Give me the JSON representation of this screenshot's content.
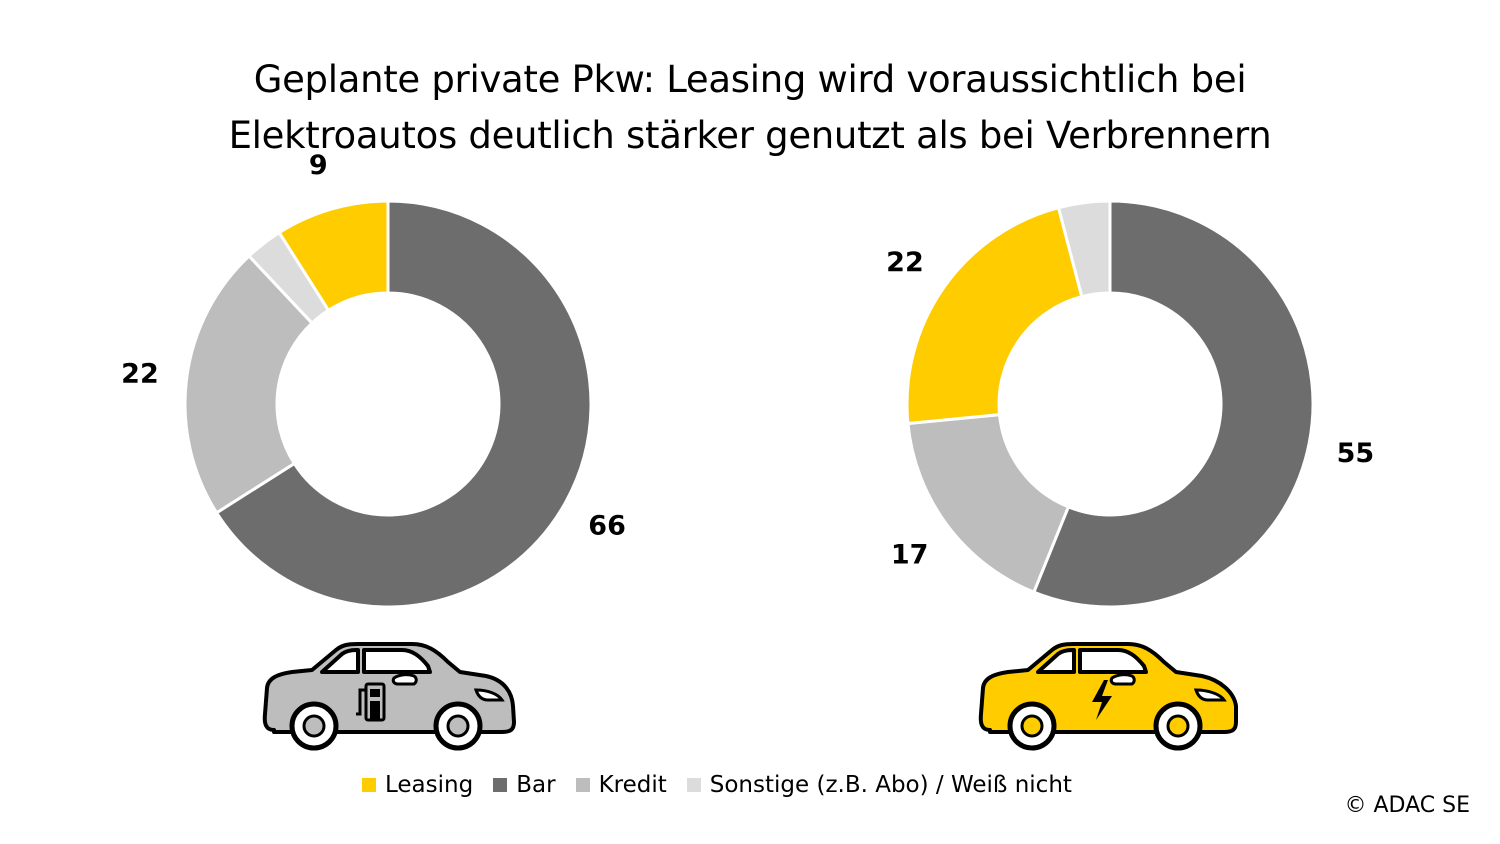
{
  "title_line1": "Geplante private Pkw: Leasing wird voraussichtlich bei",
  "title_line2": "Elektroautos deutlich stärker genutzt als bei Verbrennern",
  "colors": {
    "leasing": "#ffcc00",
    "bar": "#6d6d6d",
    "kredit": "#bdbdbd",
    "sonstige": "#dcdcdc"
  },
  "legend": [
    {
      "label": "Leasing",
      "color": "#ffcc00"
    },
    {
      "label": "Bar",
      "color": "#6d6d6d"
    },
    {
      "label": "Kredit",
      "color": "#bdbdbd"
    },
    {
      "label": "Sonstige (z.B. Abo) / Weiß nicht",
      "color": "#dcdcdc"
    }
  ],
  "copyright": "© ADAC SE",
  "chart_data": [
    {
      "type": "pie",
      "variant": "donut",
      "icon": "combustion-car-icon",
      "slices": [
        {
          "category": "Bar",
          "value": 66,
          "label": "66",
          "color": "#6d6d6d"
        },
        {
          "category": "Kredit",
          "value": 22,
          "label": "22",
          "color": "#bdbdbd"
        },
        {
          "category": "Sonstige (z.B. Abo) / Weiß nicht",
          "value": 3,
          "label": "",
          "color": "#dcdcdc"
        },
        {
          "category": "Leasing",
          "value": 9,
          "label": "9",
          "color": "#ffcc00"
        }
      ]
    },
    {
      "type": "pie",
      "variant": "donut",
      "icon": "electric-car-icon",
      "slices": [
        {
          "category": "Bar",
          "value": 55,
          "label": "55",
          "color": "#6d6d6d"
        },
        {
          "category": "Kredit",
          "value": 17,
          "label": "17",
          "color": "#bdbdbd"
        },
        {
          "category": "Leasing",
          "value": 22,
          "label": "22",
          "color": "#ffcc00"
        },
        {
          "category": "Sonstige (z.B. Abo) / Weiß nicht",
          "value": 4,
          "label": "",
          "color": "#dcdcdc"
        }
      ]
    }
  ]
}
